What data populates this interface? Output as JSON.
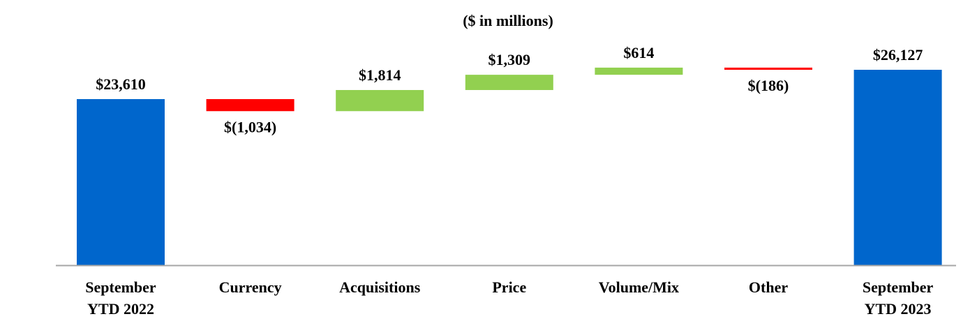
{
  "chart_data": {
    "type": "waterfall",
    "title": "($ in millions)",
    "categories": [
      [
        "September",
        "YTD  2022"
      ],
      [
        "Currency"
      ],
      [
        "Acquisitions"
      ],
      [
        "Price"
      ],
      [
        "Volume/Mix"
      ],
      [
        "Other"
      ],
      [
        "September",
        "YTD  2023"
      ]
    ],
    "values": [
      23610,
      -1034,
      1814,
      1309,
      614,
      -186,
      26127
    ],
    "kinds": [
      "total",
      "delta",
      "delta",
      "delta",
      "delta",
      "delta",
      "total"
    ],
    "labels": [
      "$23,610",
      "$(1,034)",
      "$1,814",
      "$1,309",
      "$614",
      "$(186)",
      "$26,127"
    ],
    "ylim": [
      9350,
      27000
    ],
    "grid": false,
    "colors": {
      "total": "#0066CC",
      "increase": "#92D050",
      "decrease": "#FF0000",
      "axis": "#A6A6A6"
    }
  }
}
